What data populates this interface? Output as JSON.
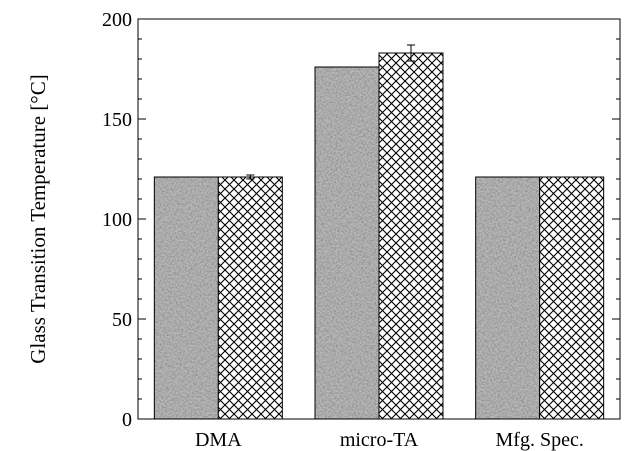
{
  "chart_data": {
    "type": "bar",
    "categories": [
      "DMA",
      "micro-TA",
      "Mfg. Spec."
    ],
    "ylabel": "Glass Transition Temperature [°C]",
    "xlabel": "",
    "ylim": [
      0,
      200
    ],
    "yticks": [
      0,
      50,
      100,
      150,
      200
    ],
    "grid": false,
    "series": [
      {
        "values": [
          121,
          176,
          121
        ],
        "pattern": "dark-speckle",
        "color": "#3a3a3a"
      },
      {
        "values": [
          121,
          183,
          121
        ],
        "pattern": "crosshatch",
        "color": "#ffffff",
        "error": [
          1,
          4,
          0
        ]
      }
    ]
  }
}
